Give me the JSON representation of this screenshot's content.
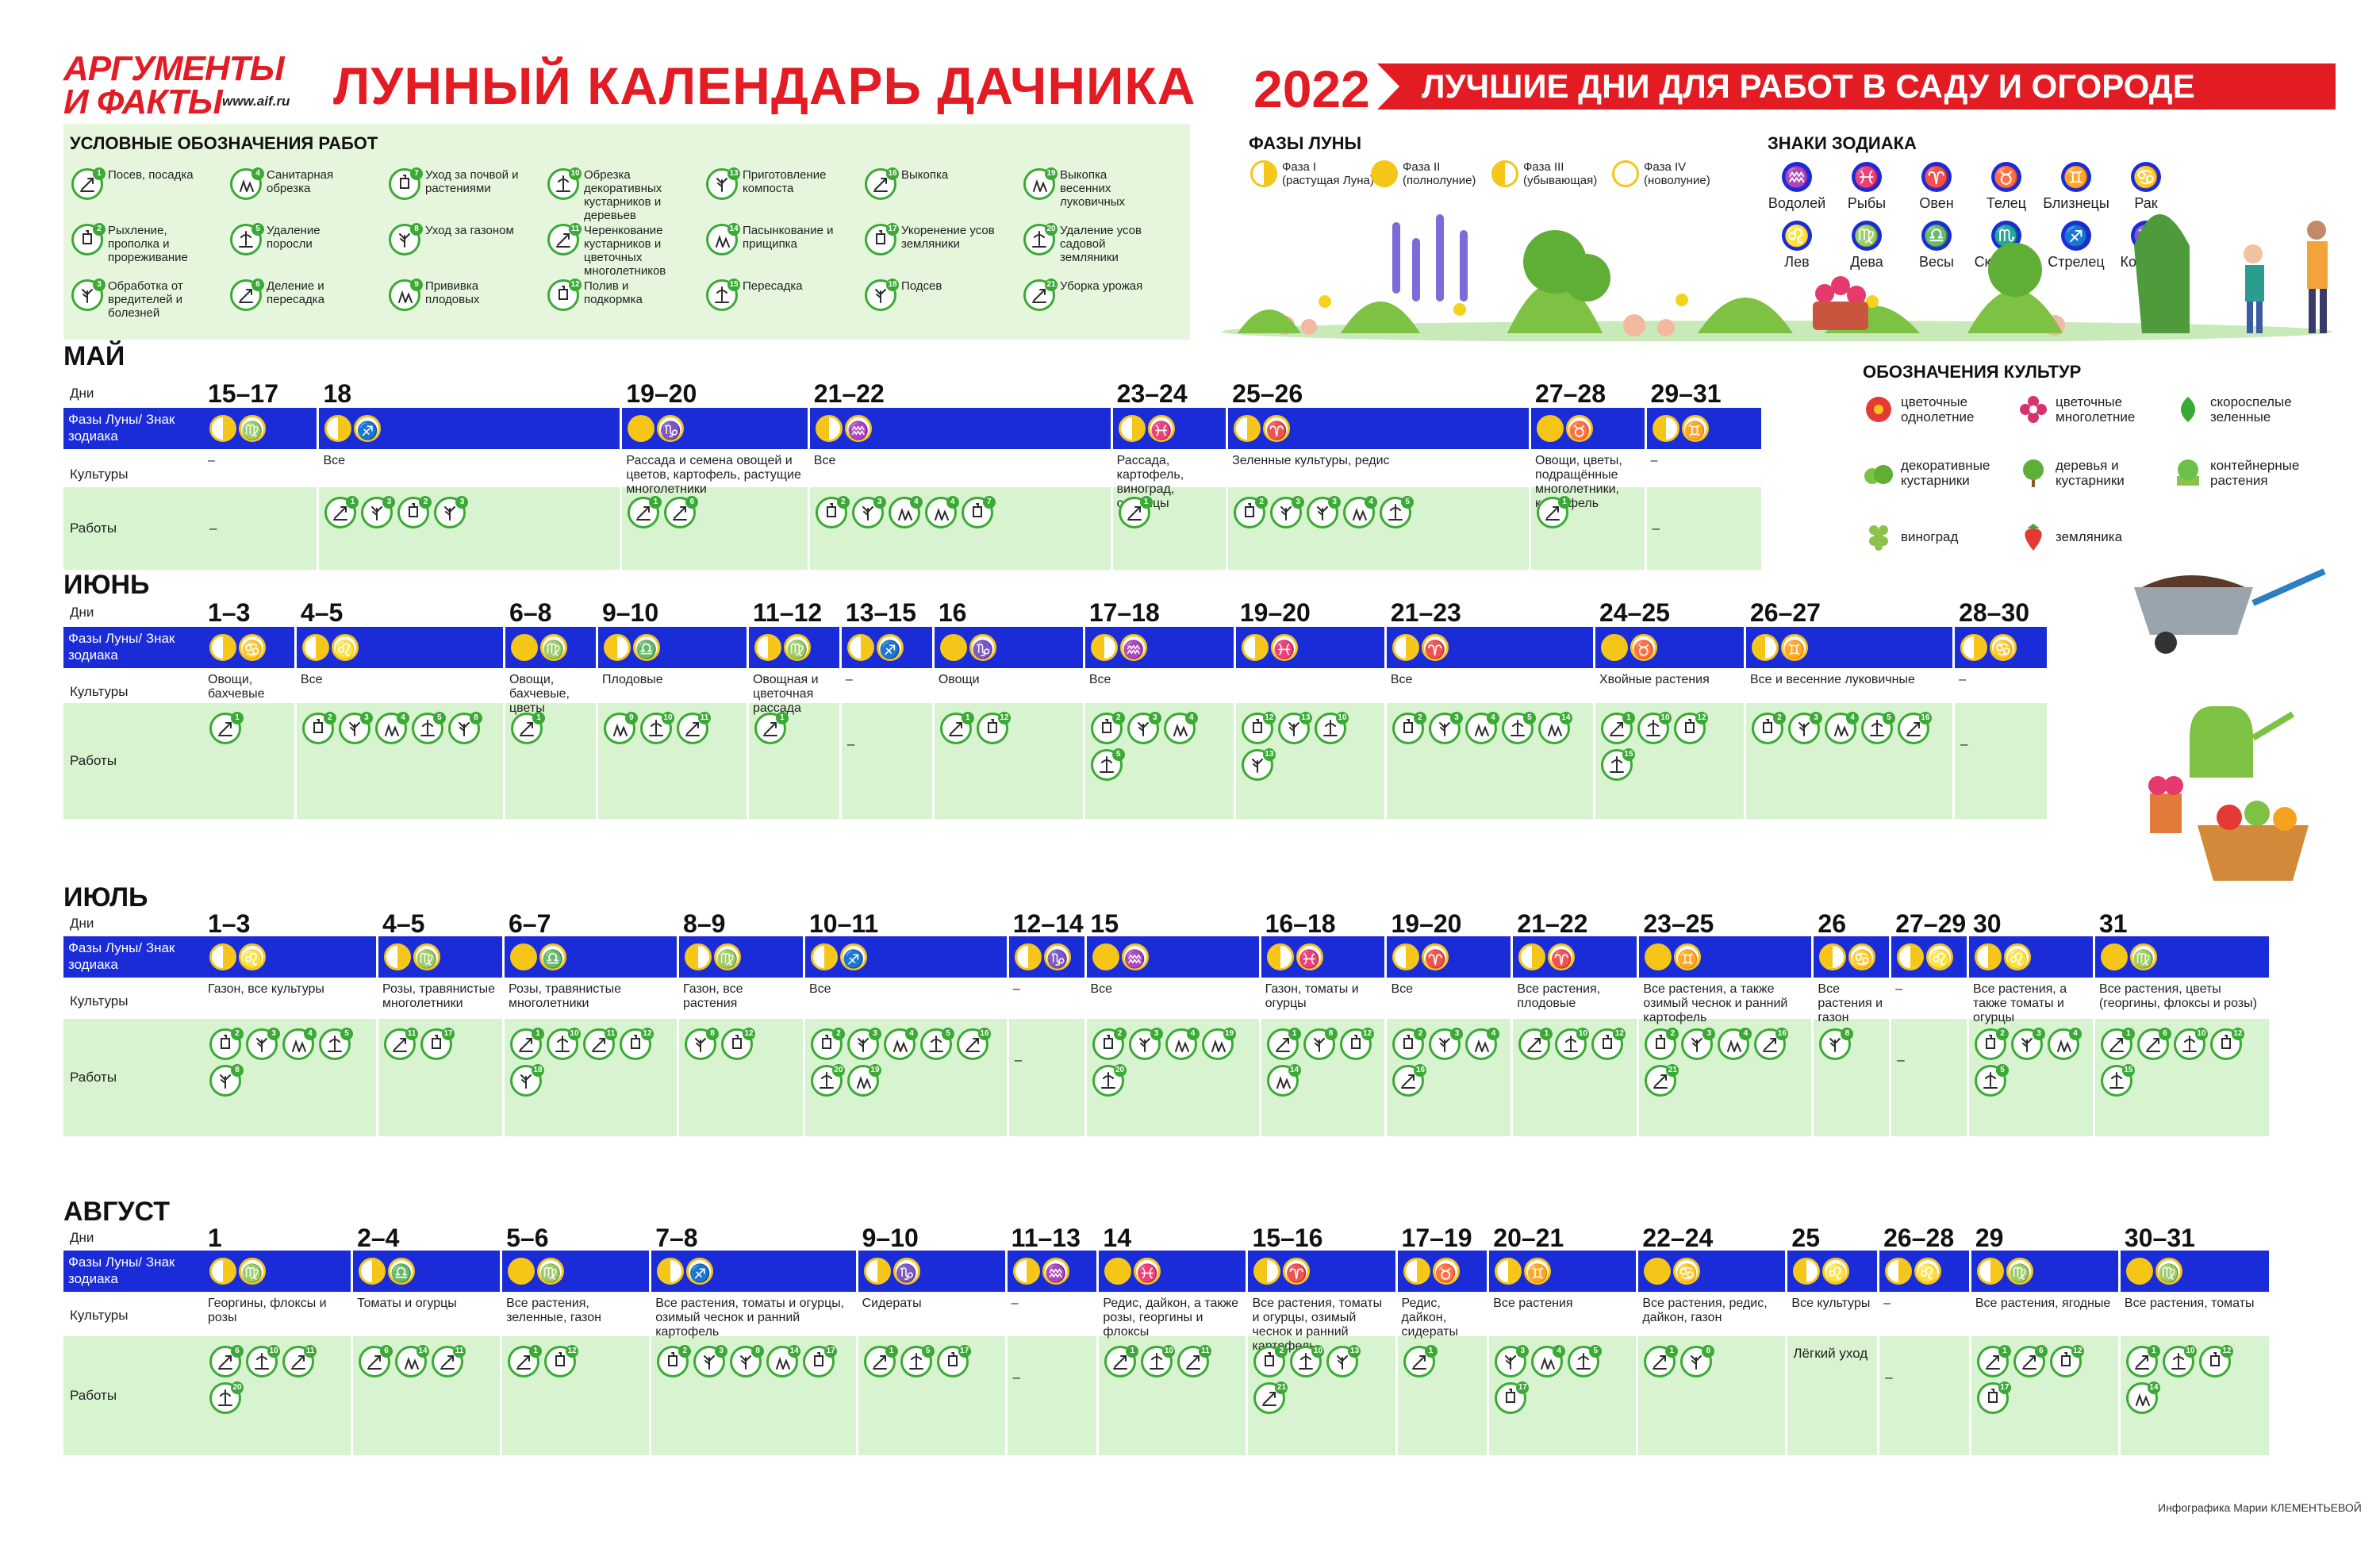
{
  "header": {
    "logo_line1": "АРГУМЕНТЫ",
    "logo_line2": "И ФАКТЫ",
    "logo_url": "www.aif.ru",
    "title": "ЛУННЫЙ КАЛЕНДАРЬ ДАЧНИКА",
    "year": "2022",
    "banner": "ЛУЧШИЕ ДНИ ДЛЯ РАБОТ В САДУ И ОГОРОДЕ"
  },
  "legend": {
    "title": "УСЛОВНЫЕ ОБОЗНАЧЕНИЯ РАБОТ",
    "items": [
      {
        "n": "1",
        "label": "Посев, посадка"
      },
      {
        "n": "2",
        "label": "Рыхление, прополка и прореживание"
      },
      {
        "n": "3",
        "label": "Обработка от вредителей и болезней"
      },
      {
        "n": "4",
        "label": "Санитарная обрезка"
      },
      {
        "n": "5",
        "label": "Удаление поросли"
      },
      {
        "n": "6",
        "label": "Деление и пересадка"
      },
      {
        "n": "7",
        "label": "Уход за почвой и растениями"
      },
      {
        "n": "8",
        "label": "Уход за газоном"
      },
      {
        "n": "9",
        "label": "Прививка плодовых"
      },
      {
        "n": "10",
        "label": "Обрезка декоративных кустарников и деревьев"
      },
      {
        "n": "11",
        "label": "Черенкование кустарников и цветочных многолетников"
      },
      {
        "n": "12",
        "label": "Полив и подкормка"
      },
      {
        "n": "13",
        "label": "Приготовление компоста"
      },
      {
        "n": "14",
        "label": "Пасынкование и прищипка"
      },
      {
        "n": "15",
        "label": "Пересадка"
      },
      {
        "n": "16",
        "label": "Выкопка"
      },
      {
        "n": "17",
        "label": "Укоренение усов земляники"
      },
      {
        "n": "18",
        "label": "Подсев"
      },
      {
        "n": "19",
        "label": "Выкопка весенних луковичных"
      },
      {
        "n": "20",
        "label": "Удаление усов садовой земляники"
      },
      {
        "n": "21",
        "label": "Уборка урожая"
      }
    ]
  },
  "phases": {
    "title": "ФАЗЫ ЛУНЫ",
    "items": [
      {
        "name": "Фаза I",
        "desc": "(растущая Луна)"
      },
      {
        "name": "Фаза II",
        "desc": "(полнолуние)"
      },
      {
        "name": "Фаза III",
        "desc": "(убывающая)"
      },
      {
        "name": "Фаза IV",
        "desc": "(новолуние)"
      }
    ]
  },
  "zodiac": {
    "title": "ЗНАКИ ЗОДИАКА",
    "items": [
      {
        "sym": "♒",
        "name": "Водолей"
      },
      {
        "sym": "♓",
        "name": "Рыбы"
      },
      {
        "sym": "♈",
        "name": "Овен"
      },
      {
        "sym": "♉",
        "name": "Телец"
      },
      {
        "sym": "♊",
        "name": "Близнецы"
      },
      {
        "sym": "♋",
        "name": "Рак"
      },
      {
        "sym": "♌",
        "name": "Лев"
      },
      {
        "sym": "♍",
        "name": "Дева"
      },
      {
        "sym": "♎",
        "name": "Весы"
      },
      {
        "sym": "♏",
        "name": "Скорпион"
      },
      {
        "sym": "♐",
        "name": "Стрелец"
      },
      {
        "sym": "♑",
        "name": "Козерог"
      }
    ]
  },
  "crops": {
    "title": "ОБОЗНАЧЕНИЯ КУЛЬТУР",
    "items": [
      {
        "icon": "flower-annual-icon",
        "label": "цветочные однолетние"
      },
      {
        "icon": "flower-perennial-icon",
        "label": "цветочные многолетние"
      },
      {
        "icon": "greens-icon",
        "label": "скороспелые зеленные"
      },
      {
        "icon": "shrub-icon",
        "label": "декоративные кустарники"
      },
      {
        "icon": "tree-icon",
        "label": "деревья и кустарники"
      },
      {
        "icon": "container-icon",
        "label": "контейнерные растения"
      },
      {
        "icon": "grape-icon",
        "label": "виноград"
      },
      {
        "icon": "strawberry-icon",
        "label": "земляника"
      }
    ]
  },
  "row_labels": {
    "days": "Дни",
    "phases": "Фазы Луны/ Знак зодиака",
    "crops": "Культуры",
    "works": "Работы"
  },
  "months": [
    {
      "name": "МАЙ",
      "cols": [
        {
          "d": "15–17",
          "z": "♍",
          "c": "–",
          "w": [
            "–"
          ]
        },
        {
          "d": "18",
          "z": "♐",
          "c": "Все",
          "w": [
            "1",
            "3",
            "2",
            "3"
          ]
        },
        {
          "d": "19–20",
          "z": "♑",
          "c": "Рассада и семена овощей и цветов, картофель, растущие многолетники",
          "w": [
            "1",
            "6"
          ]
        },
        {
          "d": "21–22",
          "z": "♒",
          "c": "Все",
          "w": [
            "2",
            "3",
            "4",
            "4",
            "7"
          ]
        },
        {
          "d": "23–24",
          "z": "♓",
          "c": "Рассада, картофель, виноград, саженцы",
          "w": [
            "1"
          ]
        },
        {
          "d": "25–26",
          "z": "♈",
          "c": "Зеленные культуры, редис",
          "w": [
            "2",
            "3",
            "3",
            "4",
            "5"
          ]
        },
        {
          "d": "27–28",
          "z": "♉",
          "c": "Овощи, цветы, подращённые многолетники, картофель",
          "w": [
            "1"
          ]
        },
        {
          "d": "29–31",
          "z": "♊",
          "c": "–",
          "w": [
            "–"
          ]
        }
      ]
    },
    {
      "name": "ИЮНЬ",
      "cols": [
        {
          "d": "1–3",
          "z": "♋",
          "c": "Овощи, бахчевые",
          "w": [
            "1"
          ]
        },
        {
          "d": "4–5",
          "z": "♌",
          "c": "Все",
          "w": [
            "2",
            "3",
            "4",
            "5",
            "8"
          ]
        },
        {
          "d": "6–8",
          "z": "♍",
          "c": "Овощи, бахчевые, цветы",
          "w": [
            "1"
          ]
        },
        {
          "d": "9–10",
          "z": "♎",
          "c": "Плодовые",
          "w": [
            "9",
            "10",
            "11"
          ]
        },
        {
          "d": "11–12",
          "z": "♍",
          "c": "Овощная и цветочная рассада",
          "w": [
            "1"
          ]
        },
        {
          "d": "13–15",
          "z": "♐",
          "c": "–",
          "w": [
            "–"
          ]
        },
        {
          "d": "16",
          "z": "♑",
          "c": "Овощи",
          "w": [
            "1",
            "12"
          ]
        },
        {
          "d": "17–18",
          "z": "♒",
          "c": "Все",
          "w": [
            "2",
            "3",
            "4",
            "5"
          ]
        },
        {
          "d": "19–20",
          "z": "♓",
          "c": "",
          "w": [
            "12",
            "13",
            "10",
            "13"
          ]
        },
        {
          "d": "21–23",
          "z": "♈",
          "c": "Все",
          "w": [
            "2",
            "3",
            "4",
            "5",
            "14"
          ]
        },
        {
          "d": "24–25",
          "z": "♉",
          "c": "Хвойные растения",
          "w": [
            "1",
            "10",
            "12",
            "15"
          ]
        },
        {
          "d": "26–27",
          "z": "♊",
          "c": "Все и весенние луковичные",
          "w": [
            "2",
            "3",
            "4",
            "5",
            "16"
          ]
        },
        {
          "d": "28–30",
          "z": "♋",
          "c": "–",
          "w": [
            "–"
          ]
        }
      ]
    },
    {
      "name": "ИЮЛЬ",
      "cols": [
        {
          "d": "1–3",
          "z": "♌",
          "c": "Газон, все культуры",
          "w": [
            "2",
            "3",
            "4",
            "5",
            "8"
          ]
        },
        {
          "d": "4–5",
          "z": "♍",
          "c": "Розы, травянистые многолетники",
          "w": [
            "11",
            "17"
          ]
        },
        {
          "d": "6–7",
          "z": "♎",
          "c": "Розы, травянистые многолетники",
          "w": [
            "1",
            "10",
            "11",
            "12",
            "18"
          ]
        },
        {
          "d": "8–9",
          "z": "♍",
          "c": "Газон, все растения",
          "w": [
            "8",
            "12"
          ]
        },
        {
          "d": "10–11",
          "z": "♐",
          "c": "Все",
          "w": [
            "2",
            "3",
            "4",
            "5",
            "16",
            "20",
            "19"
          ]
        },
        {
          "d": "12–14",
          "z": "♑",
          "c": "–",
          "w": [
            "–"
          ]
        },
        {
          "d": "15",
          "z": "♒",
          "c": "Все",
          "w": [
            "2",
            "3",
            "4",
            "19",
            "20"
          ]
        },
        {
          "d": "16–18",
          "z": "♓",
          "c": "Газон, томаты и огурцы",
          "w": [
            "1",
            "8",
            "12",
            "14"
          ]
        },
        {
          "d": "19–20",
          "z": "♈",
          "c": "Все",
          "w": [
            "2",
            "3",
            "4",
            "16"
          ]
        },
        {
          "d": "21–22",
          "z": "♈",
          "c": "Все растения, плодовые",
          "w": [
            "1",
            "10",
            "12"
          ]
        },
        {
          "d": "23–25",
          "z": "♊",
          "c": "Все растения, а также озимый чеснок и ранний картофель",
          "w": [
            "2",
            "3",
            "4",
            "16",
            "21"
          ]
        },
        {
          "d": "26",
          "z": "♋",
          "c": "Все растения и газон",
          "w": [
            "8"
          ]
        },
        {
          "d": "27–29",
          "z": "♌",
          "c": "–",
          "w": [
            "–"
          ]
        },
        {
          "d": "30",
          "z": "♌",
          "c": "Все растения, а также томаты и огурцы",
          "w": [
            "2",
            "3",
            "4",
            "5"
          ]
        },
        {
          "d": "31",
          "z": "♍",
          "c": "Все растения, цветы (георгины, флоксы и розы)",
          "w": [
            "1",
            "6",
            "10",
            "12",
            "15"
          ]
        }
      ]
    },
    {
      "name": "АВГУСТ",
      "cols": [
        {
          "d": "1",
          "z": "♍",
          "c": "Георгины, флоксы и розы",
          "w": [
            "6",
            "10",
            "11",
            "20"
          ]
        },
        {
          "d": "2–4",
          "z": "♎",
          "c": "Томаты и огурцы",
          "w": [
            "6",
            "14",
            "11"
          ]
        },
        {
          "d": "5–6",
          "z": "♍",
          "c": "Все растения, зеленные, газон",
          "w": [
            "1",
            "12"
          ]
        },
        {
          "d": "7–8",
          "z": "♐",
          "c": "Все растения, томаты и огурцы, озимый чеснок и ранний картофель",
          "w": [
            "2",
            "3",
            "8",
            "14",
            "17"
          ]
        },
        {
          "d": "9–10",
          "z": "♑",
          "c": "Сидераты",
          "w": [
            "1",
            "5",
            "17"
          ]
        },
        {
          "d": "11–13",
          "z": "♒",
          "c": "–",
          "w": [
            "–"
          ]
        },
        {
          "d": "14",
          "z": "♓",
          "c": "Редис, дайкон, а также розы, георгины и флоксы",
          "w": [
            "1",
            "10",
            "11"
          ]
        },
        {
          "d": "15–16",
          "z": "♈",
          "c": "Все растения, томаты и огурцы, озимый чеснок и ранний картофель",
          "w": [
            "2",
            "10",
            "13",
            "21"
          ]
        },
        {
          "d": "17–19",
          "z": "♉",
          "c": "Редис, дайкон, сидераты",
          "w": [
            "1"
          ]
        },
        {
          "d": "20–21",
          "z": "♊",
          "c": "Все растения",
          "w": [
            "3",
            "4",
            "5",
            "17"
          ]
        },
        {
          "d": "22–24",
          "z": "♋",
          "c": "Все растения, редис, дайкон, газон",
          "w": [
            "1",
            "8"
          ]
        },
        {
          "d": "25",
          "z": "♌",
          "c": "Все культуры",
          "w": [
            "Лёгкий уход"
          ]
        },
        {
          "d": "26–28",
          "z": "♌",
          "c": "–",
          "w": [
            "–"
          ]
        },
        {
          "d": "29",
          "z": "♍",
          "c": "Все растения, ягодные",
          "w": [
            "1",
            "6",
            "12",
            "17"
          ]
        },
        {
          "d": "30–31",
          "z": "♍",
          "c": "Все растения, томаты",
          "w": [
            "1",
            "10",
            "12",
            "14"
          ]
        }
      ]
    }
  ],
  "credit": "Инфографика Марии КЛЕМЕНТЬЕВОЙ",
  "colors": {
    "accent": "#e31b23",
    "bar": "#1a2bd8",
    "green": "#3aaa35",
    "light_green": "#d8f3cf",
    "moon": "#f5c518"
  }
}
